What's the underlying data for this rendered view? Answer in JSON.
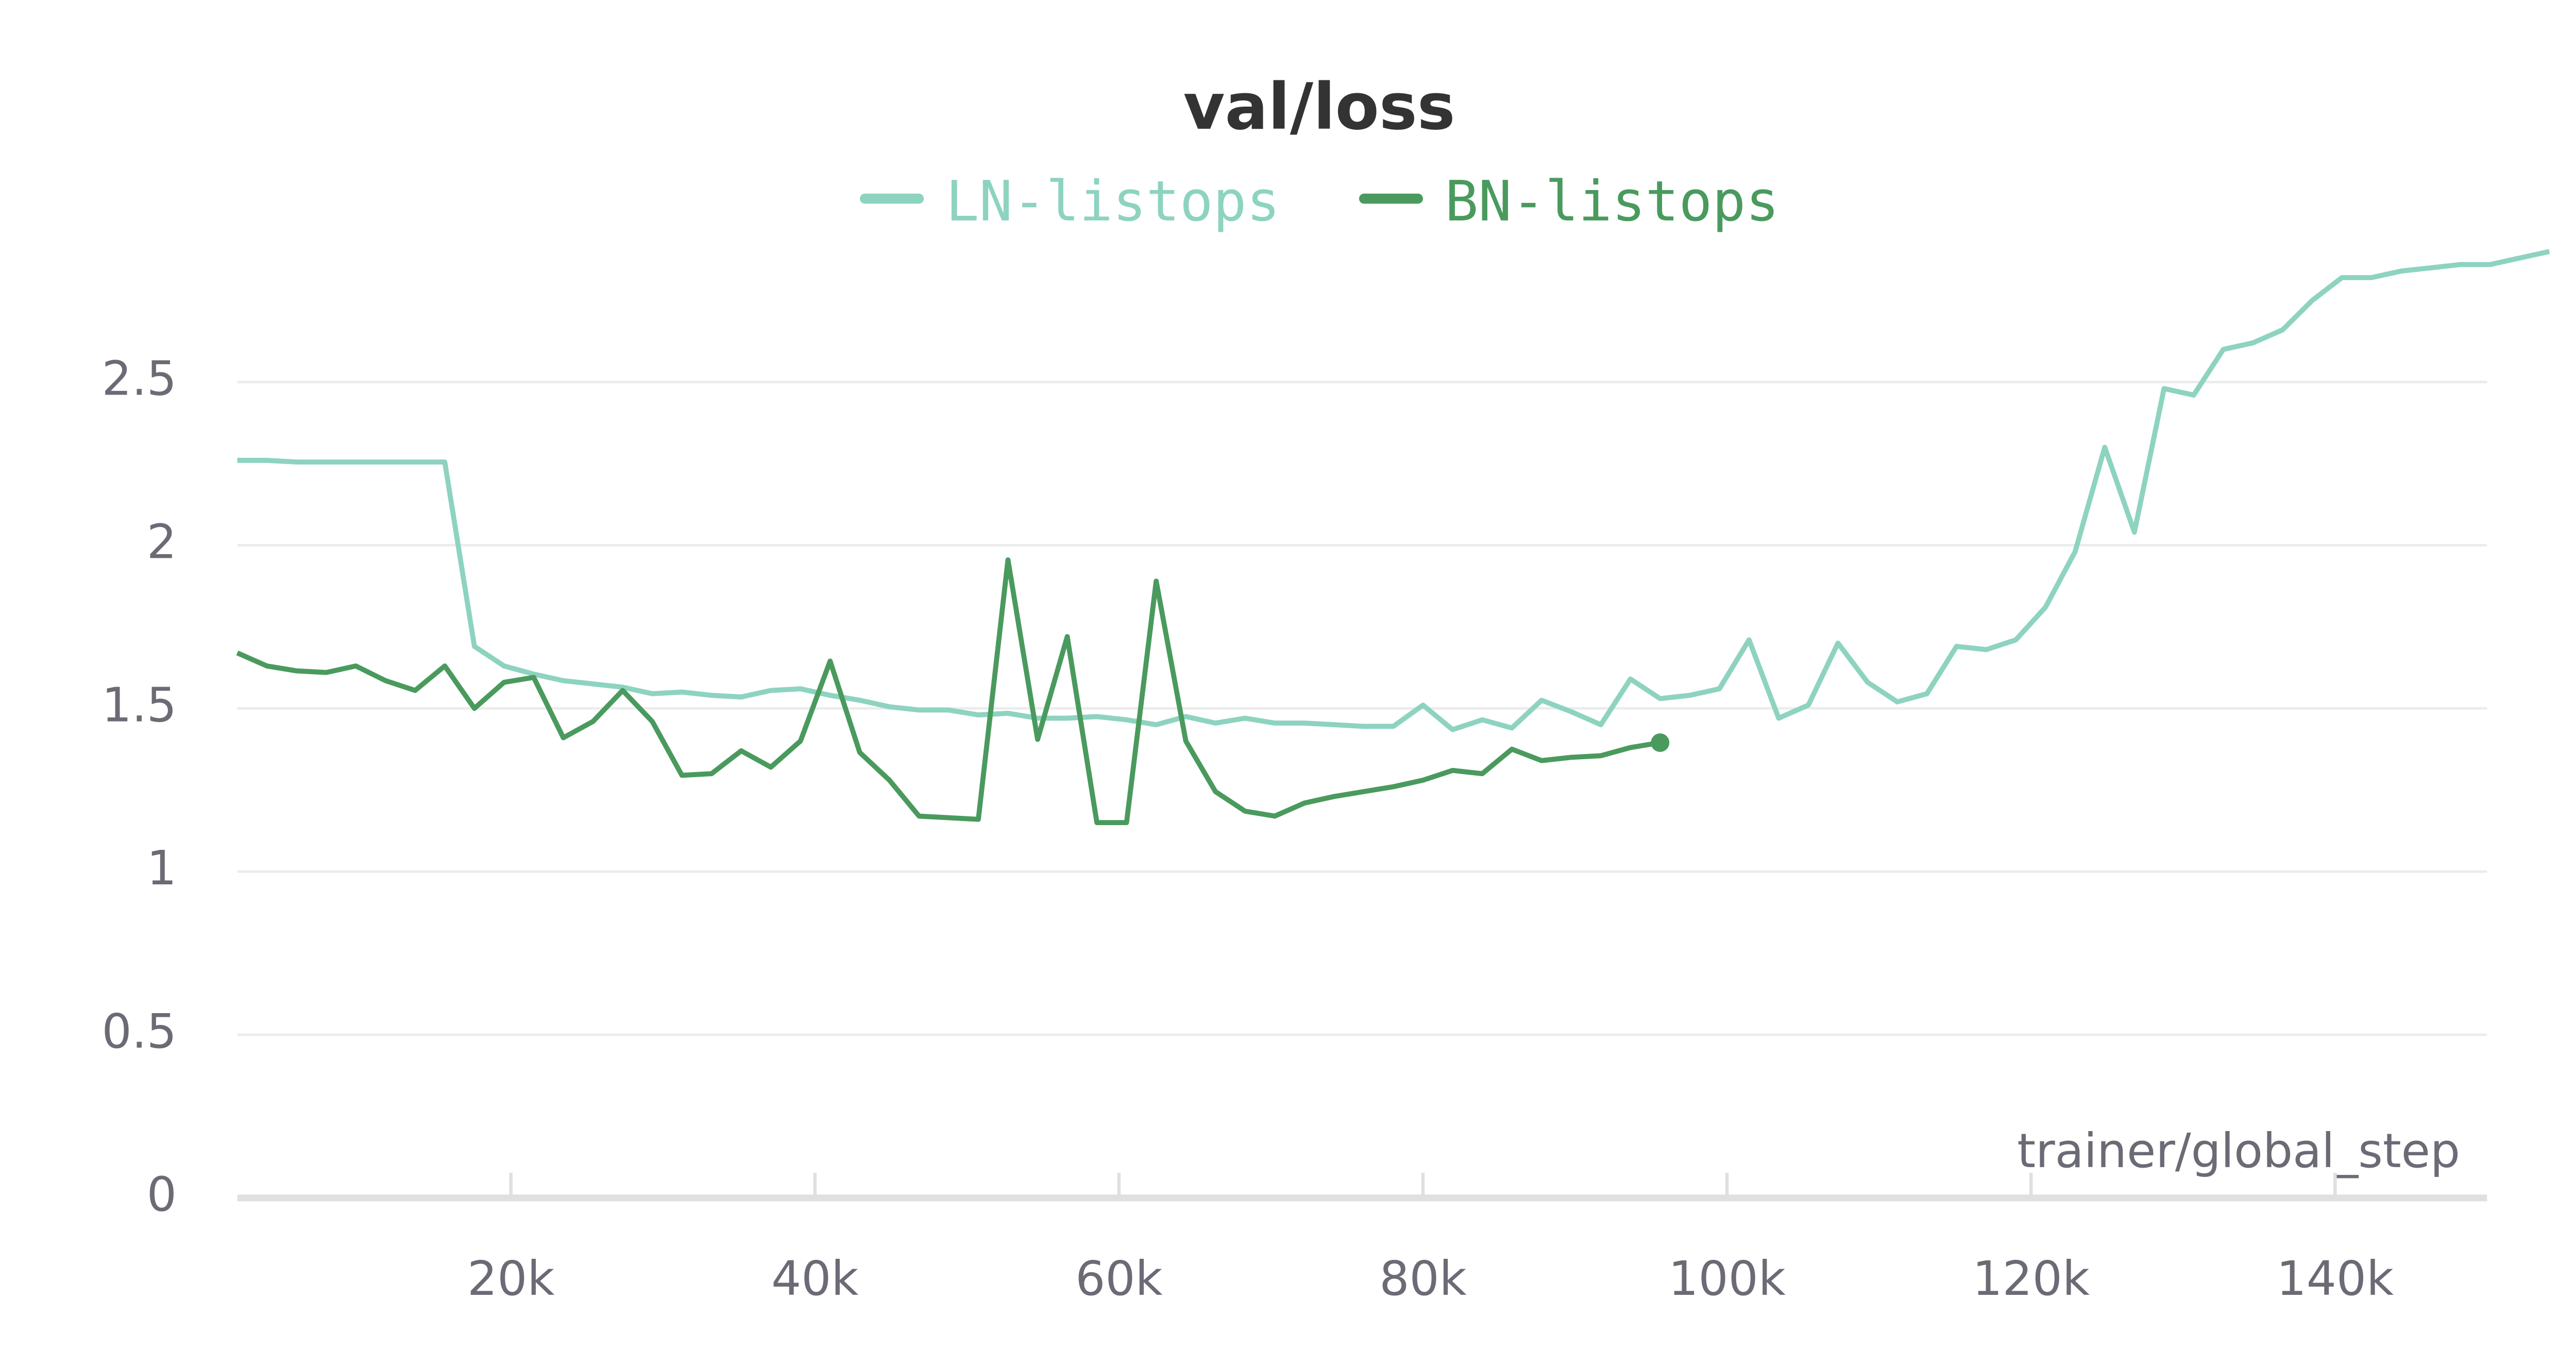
{
  "chart_data": {
    "type": "line",
    "title": "val/loss",
    "x_label": "trainer/global_step",
    "x": [
      2000,
      3950,
      5900,
      7850,
      9800,
      11750,
      13700,
      15650,
      17600,
      19550,
      21500,
      23450,
      25400,
      27350,
      29300,
      31250,
      33200,
      35150,
      37100,
      39050,
      41000,
      42950,
      44900,
      46850,
      48800,
      50750,
      52700,
      54650,
      56600,
      58550,
      60500,
      62450,
      64400,
      66350,
      68300,
      70250,
      72200,
      74150,
      76100,
      78050,
      80000,
      81950,
      83900,
      85850,
      87800,
      89750,
      91700,
      93650,
      95600,
      97550,
      99500,
      101450,
      103400,
      105350,
      107300,
      109250,
      111200,
      113150,
      115100,
      117050,
      119000,
      120950,
      122900,
      124850,
      126800,
      128750,
      130700,
      132650,
      134600,
      136550,
      138500,
      140450,
      142400,
      144350,
      146300,
      148250,
      150200,
      152150,
      154100
    ],
    "series": [
      {
        "name": "LN-listops",
        "color": "#8dd3c0",
        "values": [
          2.26,
          2.26,
          2.255,
          2.255,
          2.255,
          2.255,
          2.255,
          2.255,
          1.69,
          1.63,
          1.605,
          1.585,
          1.575,
          1.565,
          1.545,
          1.55,
          1.54,
          1.535,
          1.555,
          1.56,
          1.54,
          1.525,
          1.505,
          1.495,
          1.495,
          1.48,
          1.485,
          1.47,
          1.47,
          1.475,
          1.465,
          1.45,
          1.475,
          1.455,
          1.47,
          1.455,
          1.455,
          1.45,
          1.445,
          1.445,
          1.51,
          1.435,
          1.465,
          1.44,
          1.525,
          1.49,
          1.45,
          1.59,
          1.53,
          1.54,
          1.56,
          1.71,
          1.47,
          1.51,
          1.7,
          1.58,
          1.52,
          1.545,
          1.69,
          1.68,
          1.71,
          1.81,
          1.98,
          2.3,
          2.04,
          2.48,
          2.46,
          2.6,
          2.62,
          2.66,
          2.75,
          2.82,
          2.82,
          2.84,
          2.85,
          2.86,
          2.86,
          2.88,
          2.9
        ]
      },
      {
        "name": "BN-listops",
        "color": "#4a9a5e",
        "values": [
          1.67,
          1.63,
          1.615,
          1.61,
          1.63,
          1.585,
          1.555,
          1.63,
          1.5,
          1.58,
          1.595,
          1.41,
          1.46,
          1.555,
          1.46,
          1.295,
          1.3,
          1.37,
          1.32,
          1.4,
          1.645,
          1.365,
          1.28,
          1.17,
          1.165,
          1.16,
          1.955,
          1.405,
          1.72,
          1.15,
          1.15,
          1.89,
          1.4,
          1.245,
          1.185,
          1.17,
          1.21,
          1.23,
          1.245,
          1.26,
          1.28,
          1.31,
          1.3,
          1.375,
          1.34,
          1.35,
          1.355,
          1.38,
          1.395,
          null,
          null,
          null,
          null,
          null,
          null,
          null,
          null,
          null,
          null,
          null,
          null,
          null,
          null,
          null,
          null,
          null,
          null,
          null,
          null,
          null,
          null,
          null,
          null,
          null,
          null,
          null,
          null,
          null,
          null
        ]
      }
    ],
    "xlim": [
      2000,
      150000
    ],
    "xticks": [
      {
        "value": 20000,
        "label": "20k"
      },
      {
        "value": 40000,
        "label": "40k"
      },
      {
        "value": 60000,
        "label": "60k"
      },
      {
        "value": 80000,
        "label": "80k"
      },
      {
        "value": 100000,
        "label": "100k"
      },
      {
        "value": 120000,
        "label": "120k"
      },
      {
        "value": 140000,
        "label": "140k"
      }
    ],
    "ylim": [
      0,
      2.9
    ],
    "yticks": [
      0,
      0.5,
      1,
      1.5,
      2,
      2.5
    ],
    "grid": true
  }
}
